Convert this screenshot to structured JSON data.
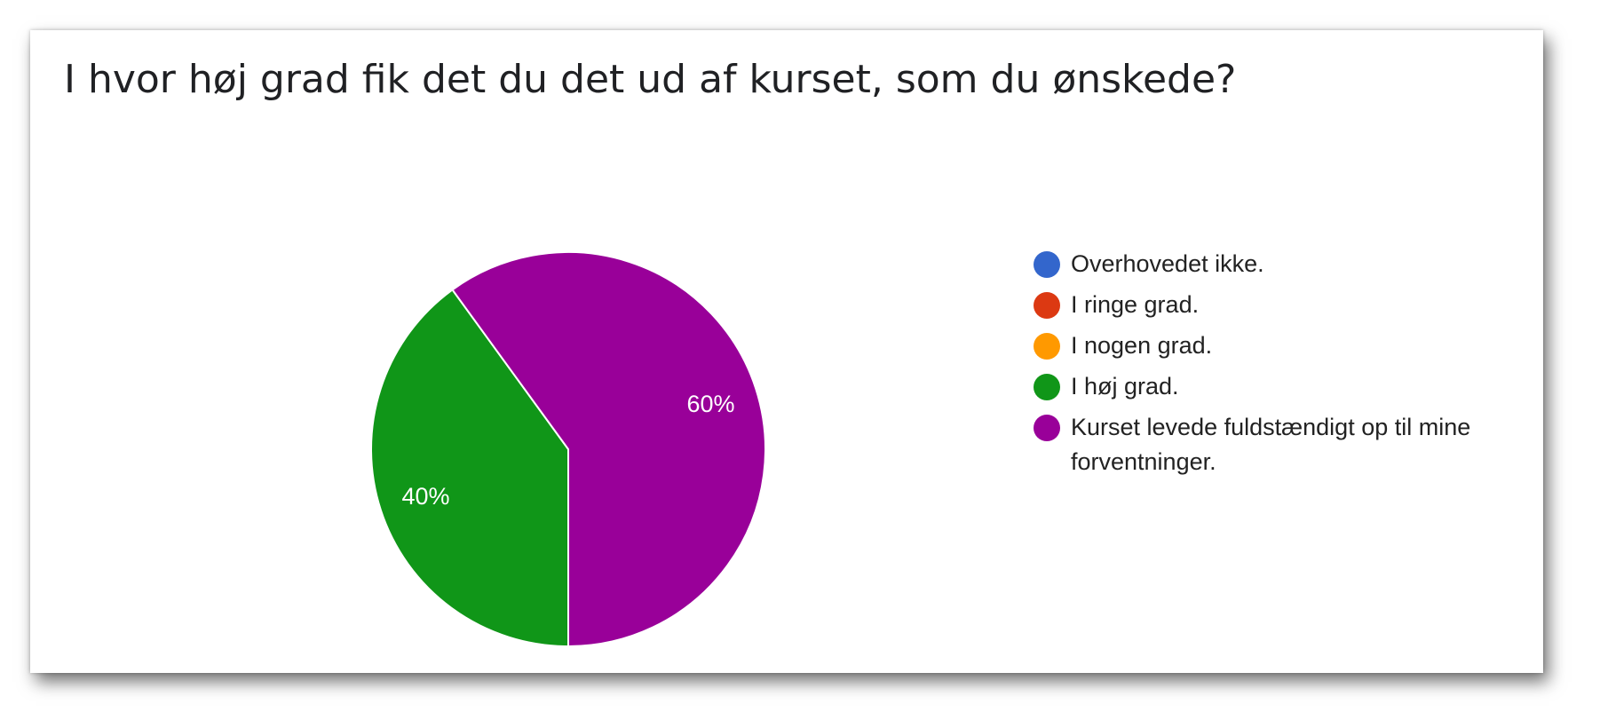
{
  "chart_data": {
    "type": "pie",
    "title": "I hvor høj grad fik det du det ud af kurset, som du ønskede?",
    "slices": [
      {
        "label": "Overhovedet ikke.",
        "value": 0,
        "color": "#3366cc"
      },
      {
        "label": "I ringe grad.",
        "value": 0,
        "color": "#dc3912"
      },
      {
        "label": "I nogen grad.",
        "value": 0,
        "color": "#ff9900"
      },
      {
        "label": "I høj grad.",
        "value": 40,
        "display": "40%",
        "color": "#109618"
      },
      {
        "label": "Kurset levede fuldstændigt op til mine forventninger.",
        "value": 60,
        "display": "60%",
        "color": "#990099"
      }
    ],
    "legend_position": "right"
  }
}
